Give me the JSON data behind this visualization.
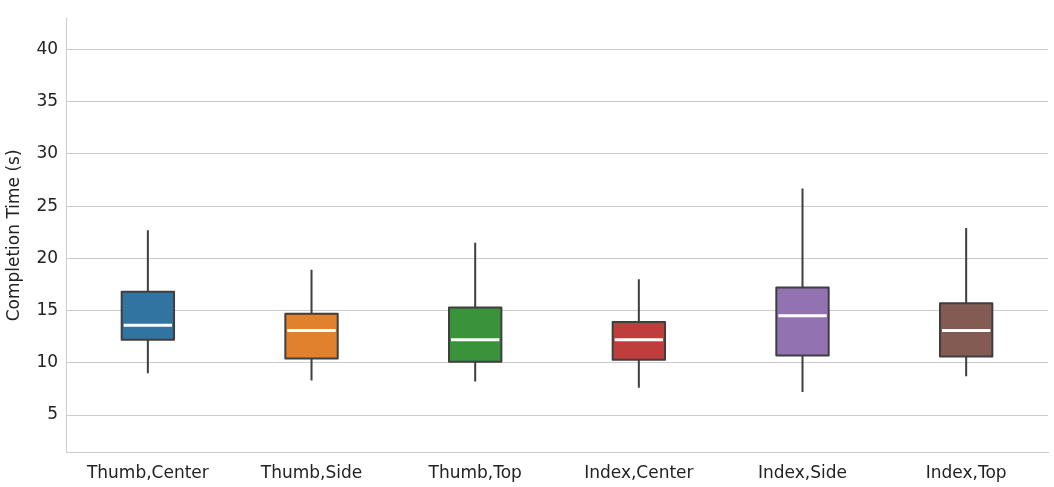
{
  "chart_data": {
    "type": "box",
    "ylabel": "Completion Time (s)",
    "categories": [
      "Thumb,Center",
      "Thumb,Side",
      "Thumb,Top",
      "Index,Center",
      "Index,Side",
      "Index,Top"
    ],
    "colors": [
      "#3274a1",
      "#e1812c",
      "#3a923a",
      "#c03d3e",
      "#9372b2",
      "#845b53"
    ],
    "boxes": [
      {
        "low": 9.0,
        "q1": 12.2,
        "median": 13.6,
        "q3": 16.8,
        "high": 22.7
      },
      {
        "low": 8.3,
        "q1": 10.4,
        "median": 13.1,
        "q3": 14.7,
        "high": 18.9
      },
      {
        "low": 8.2,
        "q1": 10.1,
        "median": 12.2,
        "q3": 15.3,
        "high": 21.5
      },
      {
        "low": 7.6,
        "q1": 10.3,
        "median": 12.2,
        "q3": 13.9,
        "high": 18.0
      },
      {
        "low": 7.2,
        "q1": 10.7,
        "median": 14.5,
        "q3": 17.2,
        "high": 26.7
      },
      {
        "low": 8.7,
        "q1": 10.6,
        "median": 13.1,
        "q3": 15.7,
        "high": 22.9
      }
    ],
    "ylim": [
      1.4,
      43
    ],
    "yticks": [
      5,
      10,
      15,
      20,
      25,
      30,
      35,
      40
    ],
    "grid": "y",
    "legend": false
  }
}
